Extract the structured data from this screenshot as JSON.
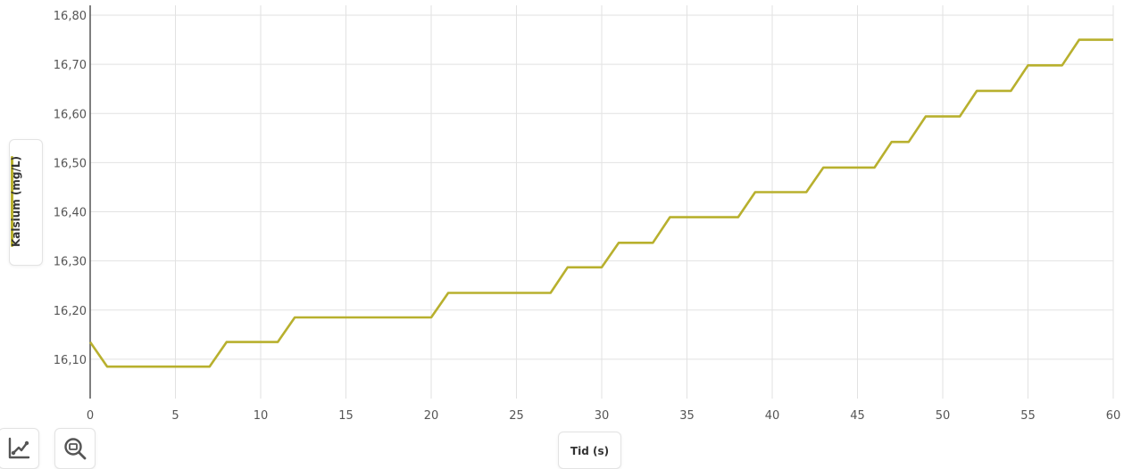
{
  "chart_data": {
    "type": "line",
    "xlabel": "Tid (s)",
    "ylabel": "Kalsium (mg/L)",
    "xlim": [
      0,
      60
    ],
    "ylim": [
      16.02,
      16.82
    ],
    "x_ticks": [
      {
        "value": 0,
        "label": "0"
      },
      {
        "value": 5,
        "label": "5"
      },
      {
        "value": 10,
        "label": "10"
      },
      {
        "value": 15,
        "label": "15"
      },
      {
        "value": 20,
        "label": "20"
      },
      {
        "value": 25,
        "label": "25"
      },
      {
        "value": 30,
        "label": "30"
      },
      {
        "value": 35,
        "label": "35"
      },
      {
        "value": 40,
        "label": "40"
      },
      {
        "value": 45,
        "label": "45"
      },
      {
        "value": 50,
        "label": "50"
      },
      {
        "value": 55,
        "label": "55"
      },
      {
        "value": 60,
        "label": "60"
      }
    ],
    "y_ticks": [
      {
        "value": 16.1,
        "label": "16,10"
      },
      {
        "value": 16.2,
        "label": "16,20"
      },
      {
        "value": 16.3,
        "label": "16,30"
      },
      {
        "value": 16.4,
        "label": "16,40"
      },
      {
        "value": 16.5,
        "label": "16,50"
      },
      {
        "value": 16.6,
        "label": "16,60"
      },
      {
        "value": 16.7,
        "label": "16,70"
      },
      {
        "value": 16.8,
        "label": "16,80"
      }
    ],
    "grid": true,
    "series": [
      {
        "color": "#b8b02e",
        "x": [
          0,
          1,
          7,
          8,
          11,
          12,
          20,
          21,
          27,
          28,
          30,
          31,
          33,
          34,
          38,
          39,
          42,
          43,
          46,
          47,
          48,
          49,
          51,
          52,
          54,
          55,
          57,
          58,
          60
        ],
        "y": [
          16.135,
          16.085,
          16.085,
          16.135,
          16.135,
          16.185,
          16.185,
          16.235,
          16.235,
          16.287,
          16.287,
          16.337,
          16.337,
          16.389,
          16.389,
          16.44,
          16.44,
          16.49,
          16.49,
          16.542,
          16.542,
          16.594,
          16.594,
          16.646,
          16.646,
          16.698,
          16.698,
          16.75,
          16.75
        ]
      }
    ]
  },
  "ui": {
    "y_axis_label": "Kalsium (mg/L)",
    "x_axis_label": "Tid (s)",
    "line_color": "#b8b02e",
    "tools": [
      {
        "icon": "chart-line-icon"
      },
      {
        "icon": "zoom-icon"
      }
    ]
  }
}
